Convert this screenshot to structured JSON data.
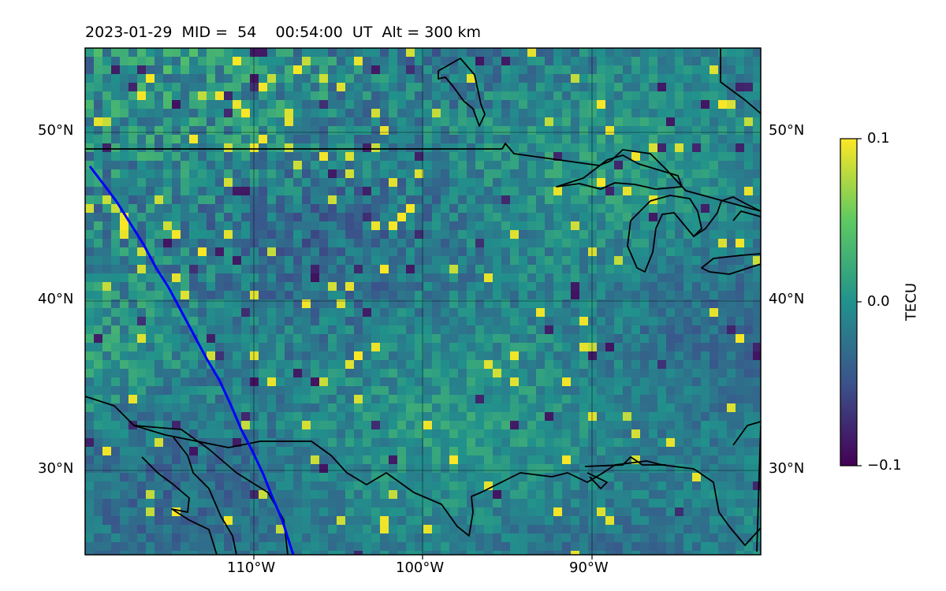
{
  "title": "2023-01-29  MID =  54    00:54:00  UT  Alt = 300 km",
  "map": {
    "lat_ticks": [
      "50°N",
      "40°N",
      "30°N"
    ],
    "lon_ticks": [
      "110°W",
      "100°W",
      "90°W"
    ],
    "extent": {
      "lon_min": -120,
      "lon_max": -80,
      "lat_min": 25,
      "lat_max": 55
    }
  },
  "colorbar": {
    "label": "TECU",
    "ticks": [
      "0.1",
      "0.0",
      "−0.1"
    ],
    "vmin": -0.1,
    "vmax": 0.1,
    "colormap": "viridis",
    "colors": [
      "#440154",
      "#3b528b",
      "#21918c",
      "#5ec962",
      "#fde725"
    ]
  },
  "colors": {
    "track": "#0000ff",
    "coast": "#000000",
    "grid": "#000000"
  }
}
